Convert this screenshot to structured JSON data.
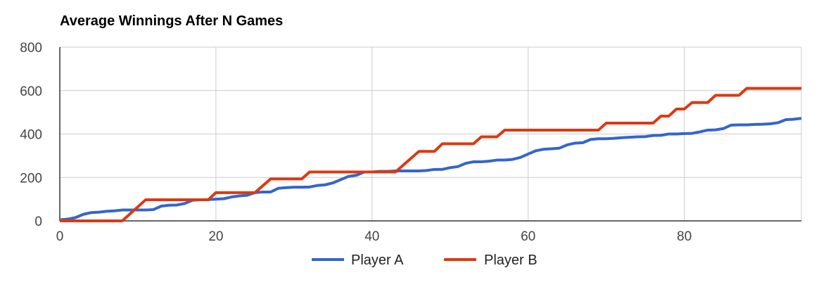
{
  "chart_data": {
    "type": "line",
    "title": "Average Winnings After N Games",
    "xlabel": "",
    "ylabel": "",
    "xlim": [
      0,
      95
    ],
    "ylim": [
      0,
      800
    ],
    "x_ticks": [
      "0",
      "20",
      "40",
      "60",
      "80"
    ],
    "y_ticks": [
      "0",
      "200",
      "400",
      "600",
      "800"
    ],
    "grid": true,
    "legend_position": "bottom",
    "series": [
      {
        "name": "Player A",
        "color": "#3366cc",
        "points": [
          [
            0,
            5
          ],
          [
            1,
            8
          ],
          [
            2,
            15
          ],
          [
            3,
            30
          ],
          [
            4,
            38
          ],
          [
            5,
            40
          ],
          [
            6,
            44
          ],
          [
            7,
            46
          ],
          [
            8,
            50
          ],
          [
            9,
            50
          ],
          [
            10,
            50
          ],
          [
            11,
            50
          ],
          [
            12,
            52
          ],
          [
            13,
            68
          ],
          [
            14,
            72
          ],
          [
            15,
            73
          ],
          [
            16,
            80
          ],
          [
            17,
            95
          ],
          [
            18,
            97
          ],
          [
            19,
            98
          ],
          [
            20,
            100
          ],
          [
            21,
            102
          ],
          [
            22,
            110
          ],
          [
            23,
            115
          ],
          [
            24,
            118
          ],
          [
            25,
            130
          ],
          [
            26,
            133
          ],
          [
            27,
            133
          ],
          [
            28,
            150
          ],
          [
            29,
            153
          ],
          [
            30,
            155
          ],
          [
            31,
            155
          ],
          [
            32,
            156
          ],
          [
            33,
            163
          ],
          [
            34,
            166
          ],
          [
            35,
            175
          ],
          [
            36,
            190
          ],
          [
            37,
            205
          ],
          [
            38,
            210
          ],
          [
            39,
            225
          ],
          [
            40,
            225
          ],
          [
            41,
            228
          ],
          [
            42,
            228
          ],
          [
            43,
            230
          ],
          [
            44,
            230
          ],
          [
            45,
            230
          ],
          [
            46,
            230
          ],
          [
            47,
            232
          ],
          [
            48,
            237
          ],
          [
            49,
            237
          ],
          [
            50,
            245
          ],
          [
            51,
            250
          ],
          [
            52,
            265
          ],
          [
            53,
            272
          ],
          [
            54,
            272
          ],
          [
            55,
            275
          ],
          [
            56,
            280
          ],
          [
            57,
            280
          ],
          [
            58,
            283
          ],
          [
            59,
            292
          ],
          [
            60,
            308
          ],
          [
            61,
            323
          ],
          [
            62,
            330
          ],
          [
            63,
            332
          ],
          [
            64,
            335
          ],
          [
            65,
            350
          ],
          [
            66,
            358
          ],
          [
            67,
            360
          ],
          [
            68,
            375
          ],
          [
            69,
            378
          ],
          [
            70,
            378
          ],
          [
            71,
            380
          ],
          [
            72,
            383
          ],
          [
            73,
            385
          ],
          [
            74,
            387
          ],
          [
            75,
            388
          ],
          [
            76,
            393
          ],
          [
            77,
            394
          ],
          [
            78,
            400
          ],
          [
            79,
            400
          ],
          [
            80,
            402
          ],
          [
            81,
            403
          ],
          [
            82,
            410
          ],
          [
            83,
            418
          ],
          [
            84,
            419
          ],
          [
            85,
            425
          ],
          [
            86,
            441
          ],
          [
            87,
            442
          ],
          [
            88,
            442
          ],
          [
            89,
            444
          ],
          [
            90,
            445
          ],
          [
            91,
            447
          ],
          [
            92,
            452
          ],
          [
            93,
            466
          ],
          [
            94,
            468
          ],
          [
            95,
            472
          ]
        ]
      },
      {
        "name": "Player B",
        "color": "#dc3912",
        "points": [
          [
            0,
            0
          ],
          [
            8,
            0
          ],
          [
            11,
            97
          ],
          [
            19,
            97
          ],
          [
            20,
            130
          ],
          [
            25,
            130
          ],
          [
            27,
            193
          ],
          [
            31,
            193
          ],
          [
            32,
            225
          ],
          [
            38,
            225
          ],
          [
            40,
            225
          ],
          [
            43,
            225
          ],
          [
            46,
            320
          ],
          [
            48,
            320
          ],
          [
            49,
            355
          ],
          [
            53,
            355
          ],
          [
            54,
            387
          ],
          [
            56,
            387
          ],
          [
            57,
            418
          ],
          [
            69,
            418
          ],
          [
            70,
            450
          ],
          [
            76,
            450
          ],
          [
            77,
            482
          ],
          [
            78,
            482
          ],
          [
            79,
            515
          ],
          [
            80,
            515
          ],
          [
            81,
            545
          ],
          [
            83,
            545
          ],
          [
            84,
            578
          ],
          [
            87,
            578
          ],
          [
            88,
            610
          ],
          [
            95,
            610
          ]
        ]
      }
    ]
  }
}
